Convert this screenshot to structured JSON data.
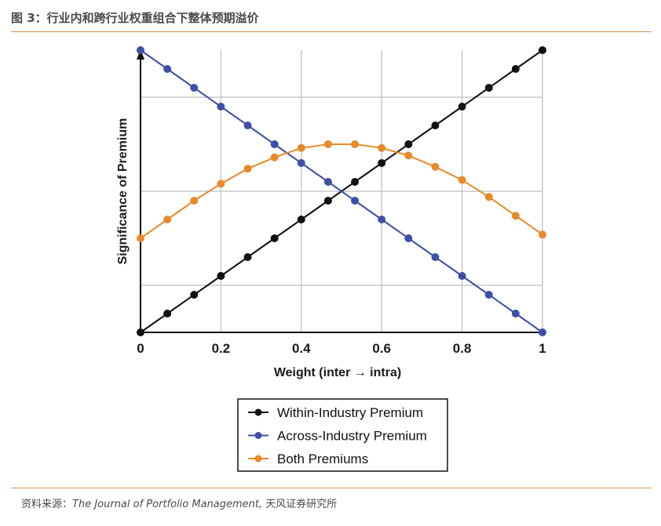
{
  "figure": {
    "title": "图 3：行业内和跨行业权重组合下整体预期溢价",
    "source_prefix": "资料来源：",
    "source_journal": "The Journal of Portfolio Management,",
    "source_suffix": " 天风证券研究所"
  },
  "chart_data": {
    "type": "line",
    "title": "",
    "xlabel": "Weight (inter → intra)",
    "ylabel": "Significance of Premium",
    "xlim": [
      0,
      1
    ],
    "ylim": [
      0,
      1.5
    ],
    "x_ticks": [
      "0",
      "0.2",
      "0.4",
      "0.6",
      "0.8",
      "1"
    ],
    "x_tick_values": [
      0,
      0.2,
      0.4,
      0.6,
      0.8,
      1
    ],
    "y_gridlines": [
      0.25,
      0.75,
      1.25
    ],
    "x": [
      0,
      0.0667,
      0.1333,
      0.2,
      0.2667,
      0.3333,
      0.4,
      0.4667,
      0.5333,
      0.6,
      0.6667,
      0.7333,
      0.8,
      0.8667,
      0.9333,
      1
    ],
    "series": [
      {
        "name": "Within-Industry Premium",
        "color": "#111111",
        "values": [
          0,
          0.1,
          0.2,
          0.3,
          0.4,
          0.5,
          0.6,
          0.7,
          0.8,
          0.9,
          1.0,
          1.1,
          1.2,
          1.3,
          1.4,
          1.5
        ]
      },
      {
        "name": "Across-Industry Premium",
        "color": "#3f4fa6",
        "values": [
          1.5,
          1.4,
          1.3,
          1.2,
          1.1,
          1.0,
          0.9,
          0.8,
          0.7,
          0.6,
          0.5,
          0.4,
          0.3,
          0.2,
          0.1,
          0
        ]
      },
      {
        "name": "Both Premiums",
        "color": "#e8892a",
        "values": [
          0.5,
          0.6,
          0.7,
          0.79,
          0.87,
          0.93,
          0.98,
          1.0,
          1.0,
          0.98,
          0.94,
          0.88,
          0.81,
          0.72,
          0.62,
          0.52
        ]
      }
    ],
    "legend_position": "bottom-center"
  }
}
